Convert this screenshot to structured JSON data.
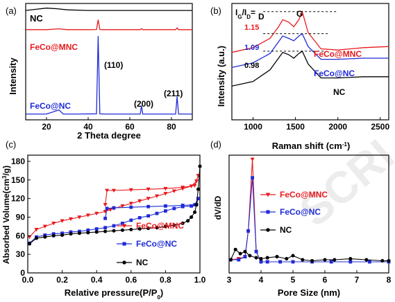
{
  "chart_data": [
    {
      "type": "line",
      "panel_label": "(a)",
      "xlabel": "2 Theta degree",
      "ylabel": "Intensity",
      "xlim": [
        10,
        90
      ],
      "xticks": [
        20,
        40,
        60,
        80
      ],
      "yticks": "none",
      "annotations": [
        "(110)",
        "(200)",
        "(211)"
      ],
      "series": [
        {
          "name": "NC",
          "color": "#000000",
          "x": [
            10,
            15,
            20,
            25,
            30,
            40,
            50,
            60,
            70,
            80,
            90
          ],
          "y": [
            0.94,
            0.95,
            0.96,
            0.955,
            0.945,
            0.94,
            0.94,
            0.94,
            0.94,
            0.94,
            0.94
          ]
        },
        {
          "name": "FeCo@MNC",
          "color": "#e8191d",
          "x": [
            10,
            20,
            26,
            30,
            40,
            44,
            44.8,
            45.6,
            47,
            55,
            65,
            65.6,
            66.2,
            70,
            82,
            82.7,
            83.4,
            90
          ],
          "y": [
            0.775,
            0.775,
            0.782,
            0.775,
            0.775,
            0.776,
            0.86,
            0.776,
            0.775,
            0.775,
            0.775,
            0.784,
            0.775,
            0.775,
            0.775,
            0.79,
            0.775,
            0.775
          ]
        },
        {
          "name": "FeCo@NC",
          "color": "#1f2bd6",
          "x": [
            10,
            20,
            26,
            28,
            35,
            44,
            44.8,
            45.6,
            47,
            60,
            65,
            65.6,
            66.2,
            75,
            82,
            82.7,
            83.4,
            90
          ],
          "y": [
            0.05,
            0.05,
            0.085,
            0.05,
            0.05,
            0.052,
            0.72,
            0.052,
            0.05,
            0.05,
            0.05,
            0.12,
            0.05,
            0.05,
            0.05,
            0.2,
            0.05,
            0.05
          ]
        }
      ]
    },
    {
      "type": "line",
      "panel_label": "(b)",
      "xlabel": "Raman shift (cm-1)",
      "ylabel": "Intensity (a.u.)",
      "xlim": [
        750,
        2600
      ],
      "xticks": [
        1000,
        1500,
        2000,
        2500
      ],
      "ratio_label": "IG/ID=",
      "band_labels": [
        "D",
        "G"
      ],
      "ratios": [
        {
          "value": "1.15",
          "color": "#e8191d"
        },
        {
          "value": "1.09",
          "color": "#1f2bd6"
        },
        {
          "value": "0.98",
          "color": "#000000"
        }
      ],
      "series": [
        {
          "name": "FeCo@MNC",
          "color": "#e8191d",
          "x": [
            750,
            1000,
            1200,
            1300,
            1350,
            1420,
            1480,
            1540,
            1580,
            1650,
            1800,
            2000,
            2300,
            2600
          ],
          "y": [
            0.58,
            0.62,
            0.7,
            0.8,
            0.86,
            0.84,
            0.8,
            0.86,
            0.93,
            0.75,
            0.61,
            0.6,
            0.62,
            0.63
          ]
        },
        {
          "name": "FeCo@NC",
          "color": "#1f2bd6",
          "x": [
            750,
            1000,
            1200,
            1300,
            1350,
            1420,
            1480,
            1540,
            1580,
            1650,
            1800,
            2000,
            2300,
            2600
          ],
          "y": [
            0.45,
            0.49,
            0.57,
            0.67,
            0.72,
            0.7,
            0.68,
            0.72,
            0.74,
            0.63,
            0.52,
            0.52,
            0.53,
            0.53
          ]
        },
        {
          "name": "NC",
          "color": "#000000",
          "x": [
            750,
            1000,
            1200,
            1300,
            1350,
            1420,
            1480,
            1540,
            1580,
            1650,
            1800,
            2000,
            2300,
            2600
          ],
          "y": [
            0.29,
            0.33,
            0.43,
            0.53,
            0.58,
            0.56,
            0.53,
            0.57,
            0.59,
            0.48,
            0.36,
            0.36,
            0.37,
            0.37
          ]
        }
      ]
    },
    {
      "type": "line",
      "panel_label": "(c)",
      "xlabel": "Relative pressure(P/P0)",
      "ylabel": "Absorbed Volume(cm3/g)",
      "xlim": [
        0,
        1.0
      ],
      "ylim": [
        0,
        190
      ],
      "xticks": [
        0.0,
        0.2,
        0.4,
        0.6,
        0.8,
        1.0
      ],
      "yticks": [
        0,
        30,
        60,
        90,
        120,
        150,
        180
      ],
      "series": [
        {
          "name": "FeCo@MNC",
          "color": "#e8191d",
          "marker": "triangle-down",
          "x": [
            0.01,
            0.05,
            0.1,
            0.15,
            0.2,
            0.25,
            0.3,
            0.35,
            0.4,
            0.45,
            0.48,
            0.5,
            0.55,
            0.6,
            0.65,
            0.7,
            0.75,
            0.8,
            0.85,
            0.9,
            0.95,
            0.98,
            0.99,
            0.97,
            0.9,
            0.8,
            0.7,
            0.6,
            0.5,
            0.46,
            0.45
          ],
          "y": [
            58,
            70,
            75,
            80,
            84,
            87,
            90,
            93,
            96,
            99,
            102,
            104,
            108,
            112,
            116,
            120,
            124,
            128,
            132,
            136,
            140,
            148,
            157,
            141,
            138,
            136,
            135,
            134,
            133,
            133,
            110
          ]
        },
        {
          "name": "FeCo@NC",
          "color": "#1f2bd6",
          "marker": "square",
          "x": [
            0.01,
            0.05,
            0.1,
            0.15,
            0.2,
            0.25,
            0.3,
            0.35,
            0.4,
            0.45,
            0.5,
            0.55,
            0.6,
            0.65,
            0.7,
            0.75,
            0.8,
            0.85,
            0.9,
            0.95,
            0.98,
            0.99,
            0.97,
            0.9,
            0.8,
            0.7,
            0.6,
            0.5,
            0.46,
            0.45
          ],
          "y": [
            48,
            58,
            61,
            63,
            64,
            66,
            67,
            69,
            71,
            73,
            76,
            80,
            85,
            89,
            92,
            96,
            100,
            104,
            107,
            108,
            110,
            120,
            110,
            109,
            108,
            107,
            106,
            105,
            104,
            88
          ]
        },
        {
          "name": "NC",
          "color": "#000000",
          "marker": "circle",
          "x": [
            0.01,
            0.05,
            0.1,
            0.15,
            0.2,
            0.25,
            0.3,
            0.35,
            0.4,
            0.45,
            0.5,
            0.55,
            0.6,
            0.65,
            0.7,
            0.75,
            0.8,
            0.85,
            0.9,
            0.93,
            0.95,
            0.97,
            0.98,
            0.99,
            1.0
          ],
          "y": [
            47,
            56,
            58,
            60,
            61,
            63,
            64,
            65,
            66,
            67,
            68,
            69,
            70,
            71,
            72,
            73,
            75,
            77,
            80,
            84,
            90,
            98,
            110,
            135,
            172
          ]
        }
      ]
    },
    {
      "type": "line",
      "panel_label": "(d)",
      "xlabel": "Pore Size (nm)",
      "ylabel": "dV/dD",
      "xlim": [
        3,
        8
      ],
      "xticks": [
        3,
        4,
        5,
        6,
        7,
        8
      ],
      "yticks": "none",
      "series": [
        {
          "name": "FeCo@MNC",
          "color": "#e8191d",
          "marker": "triangle-down",
          "x": [
            3.05,
            3.3,
            3.5,
            3.6,
            3.73,
            3.85,
            4.0,
            4.2,
            4.6,
            5.0,
            5.6,
            6.2,
            6.8,
            7.4,
            8.0
          ],
          "y": [
            0.02,
            0.03,
            0.05,
            0.3,
            1.0,
            0.1,
            0.0,
            0.0,
            0.0,
            0.0,
            0.0,
            0.0,
            0.0,
            0.0,
            0.0
          ]
        },
        {
          "name": "FeCo@NC",
          "color": "#1f2bd6",
          "marker": "square",
          "x": [
            3.05,
            3.3,
            3.5,
            3.6,
            3.73,
            3.85,
            4.0,
            4.2,
            4.6,
            5.0,
            5.6,
            6.2,
            6.8,
            7.4,
            8.0
          ],
          "y": [
            0.02,
            0.02,
            0.05,
            0.3,
            0.82,
            0.1,
            0.0,
            0.0,
            0.0,
            0.0,
            0.0,
            0.0,
            0.0,
            0.0,
            0.0
          ]
        },
        {
          "name": "NC",
          "color": "#000000",
          "marker": "circle",
          "x": [
            3.05,
            3.2,
            3.35,
            3.5,
            3.65,
            3.85,
            4.0,
            4.2,
            4.5,
            4.8,
            5.0,
            5.3,
            5.6,
            6.0,
            6.3,
            6.8,
            7.3,
            7.8,
            8.0
          ],
          "y": [
            0.02,
            0.12,
            0.08,
            0.1,
            0.06,
            0.04,
            0.03,
            0.04,
            0.05,
            0.03,
            0.06,
            0.02,
            0.01,
            0.02,
            0.02,
            0.03,
            0.02,
            0.01,
            0.01
          ]
        }
      ]
    }
  ]
}
